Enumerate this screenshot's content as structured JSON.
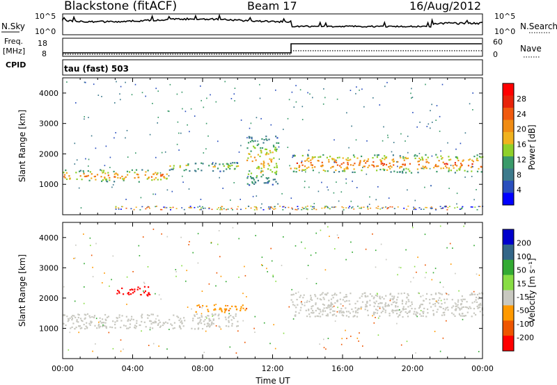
{
  "header": {
    "station": "Blackstone (fitACF)",
    "beam": "Beam 17",
    "date": "16/Aug/2012"
  },
  "param_labels": {
    "nsky": "N.Sky",
    "nsearch": "N.Search",
    "freq_top": "Freq.",
    "freq_unit": "[MHz]",
    "nave": "Nave",
    "cpid": "CPID",
    "cpid_value": "tau (fast) 503"
  },
  "param_ticks": {
    "nsky_hi": "10^5",
    "nsky_lo": "10^0",
    "freq_hi": "18",
    "freq_lo": "8",
    "nave_hi": "60",
    "nave_lo": "0"
  },
  "colors": {
    "power_scale": [
      "#0000ff",
      "#2a4fbd",
      "#3d7a8c",
      "#3a9a6a",
      "#8fd02a",
      "#f0b21e",
      "#f08c14",
      "#f05a0f",
      "#e8230a",
      "#ff0000"
    ],
    "velocity_scale": [
      "#ff0000",
      "#ee5500",
      "#ff9900",
      "#c8c8c0",
      "#88dd44",
      "#33aa33",
      "#336688",
      "#0000cc"
    ]
  },
  "chart_data": [
    {
      "type": "heatmap",
      "name": "power-panel",
      "ylabel": "Slant Range [km]",
      "xlabel": "Time UT",
      "xlim": [
        0,
        24
      ],
      "ylim": [
        0,
        4500
      ],
      "x_ticks": [
        "00:00",
        "04:00",
        "08:00",
        "12:00",
        "16:00",
        "20:00",
        "00:00"
      ],
      "y_ticks": [
        "1000",
        "2000",
        "3000",
        "4000"
      ],
      "colorbar_label": "Power [dB]",
      "colorbar_ticks": [
        "4",
        "8",
        "12",
        "16",
        "20",
        "24",
        "28"
      ],
      "features": [
        {
          "t_start": 0,
          "t_end": 6,
          "range_start": 1100,
          "range_end": 1500,
          "level_db": 22
        },
        {
          "t_start": 6,
          "t_end": 10,
          "range_start": 1450,
          "range_end": 1750,
          "level_db": 16
        },
        {
          "t_start": 10.5,
          "t_end": 12.3,
          "range_start": 1000,
          "range_end": 2600,
          "level_db": 18
        },
        {
          "t_start": 13,
          "t_end": 24,
          "range_start": 1400,
          "range_end": 2000,
          "level_db": 24
        }
      ]
    },
    {
      "type": "heatmap",
      "name": "velocity-panel",
      "ylabel": "Slant Range [km]",
      "xlabel": "Time UT",
      "xlim": [
        0,
        24
      ],
      "ylim": [
        0,
        4500
      ],
      "x_ticks": [
        "00:00",
        "04:00",
        "08:00",
        "12:00",
        "16:00",
        "20:00",
        "00:00"
      ],
      "y_ticks": [
        "1000",
        "2000",
        "3000",
        "4000"
      ],
      "colorbar_label": "Velocity [m s⁻¹]",
      "colorbar_ticks": [
        "200",
        "100",
        "50",
        "15",
        "-15",
        "-50",
        "-100",
        "-200"
      ],
      "features": [
        {
          "t_start": 0,
          "t_end": 10,
          "range_start": 1000,
          "range_end": 1500,
          "velocity": 0
        },
        {
          "t_start": 3,
          "t_end": 5,
          "range_start": 2100,
          "range_end": 2400,
          "velocity": -200
        },
        {
          "t_start": 7.5,
          "t_end": 10.5,
          "range_start": 1550,
          "range_end": 1800,
          "velocity": -60
        },
        {
          "t_start": 13,
          "t_end": 24,
          "range_start": 1400,
          "range_end": 2200,
          "velocity": 0
        }
      ]
    }
  ]
}
